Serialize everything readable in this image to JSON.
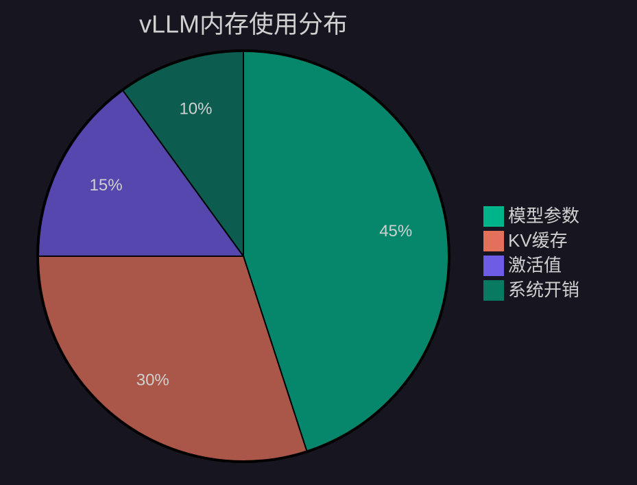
{
  "chart_data": {
    "type": "pie",
    "title": "vLLM内存使用分布",
    "categories": [
      "模型参数",
      "KV缓存",
      "激活值",
      "系统开销"
    ],
    "values": [
      45,
      30,
      15,
      10
    ],
    "value_labels": [
      "45%",
      "30%",
      "15%",
      "10%"
    ],
    "colors": [
      "#00b48a",
      "#e3705a",
      "#6e5ce6",
      "#087a62"
    ],
    "legend": "right"
  }
}
